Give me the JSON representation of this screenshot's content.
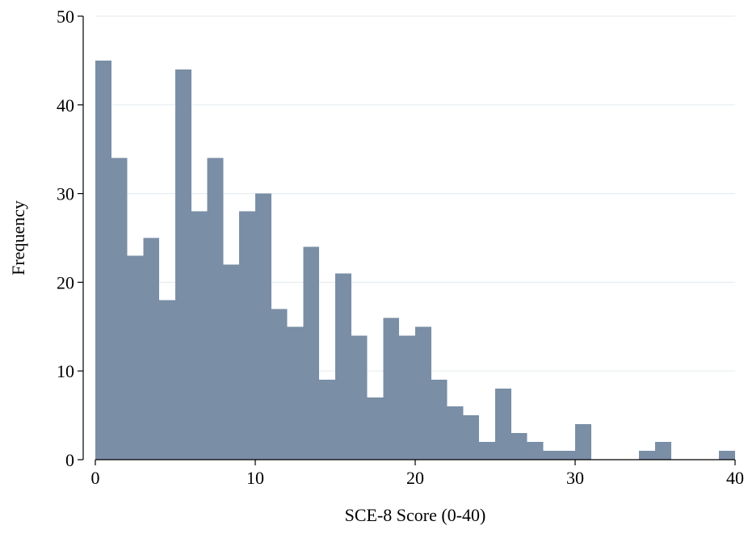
{
  "chart_data": {
    "type": "bar",
    "title": "",
    "xlabel": "SCE-8 Score (0-40)",
    "ylabel": "Frequency",
    "bin_width": 1,
    "xlim": [
      0,
      40
    ],
    "ylim": [
      0,
      50
    ],
    "x_ticks": [
      0,
      10,
      20,
      30,
      40
    ],
    "y_ticks": [
      0,
      10,
      20,
      30,
      40,
      50
    ],
    "grid": "horizontal",
    "bins": [
      0,
      1,
      2,
      3,
      4,
      5,
      6,
      7,
      8,
      9,
      10,
      11,
      12,
      13,
      14,
      15,
      16,
      17,
      18,
      19,
      20,
      21,
      22,
      23,
      24,
      25,
      26,
      27,
      28,
      29,
      30,
      31,
      32,
      33,
      34,
      35,
      36,
      37,
      38,
      39
    ],
    "values": [
      45,
      34,
      23,
      25,
      18,
      44,
      28,
      34,
      22,
      28,
      30,
      17,
      15,
      24,
      9,
      21,
      14,
      7,
      16,
      14,
      15,
      9,
      6,
      5,
      2,
      8,
      3,
      2,
      1,
      1,
      4,
      0,
      0,
      0,
      1,
      2,
      0,
      0,
      0,
      1
    ]
  },
  "colors": {
    "bar": "#7a8ea6",
    "grid": "#e6edf2",
    "axis": "#000000"
  }
}
